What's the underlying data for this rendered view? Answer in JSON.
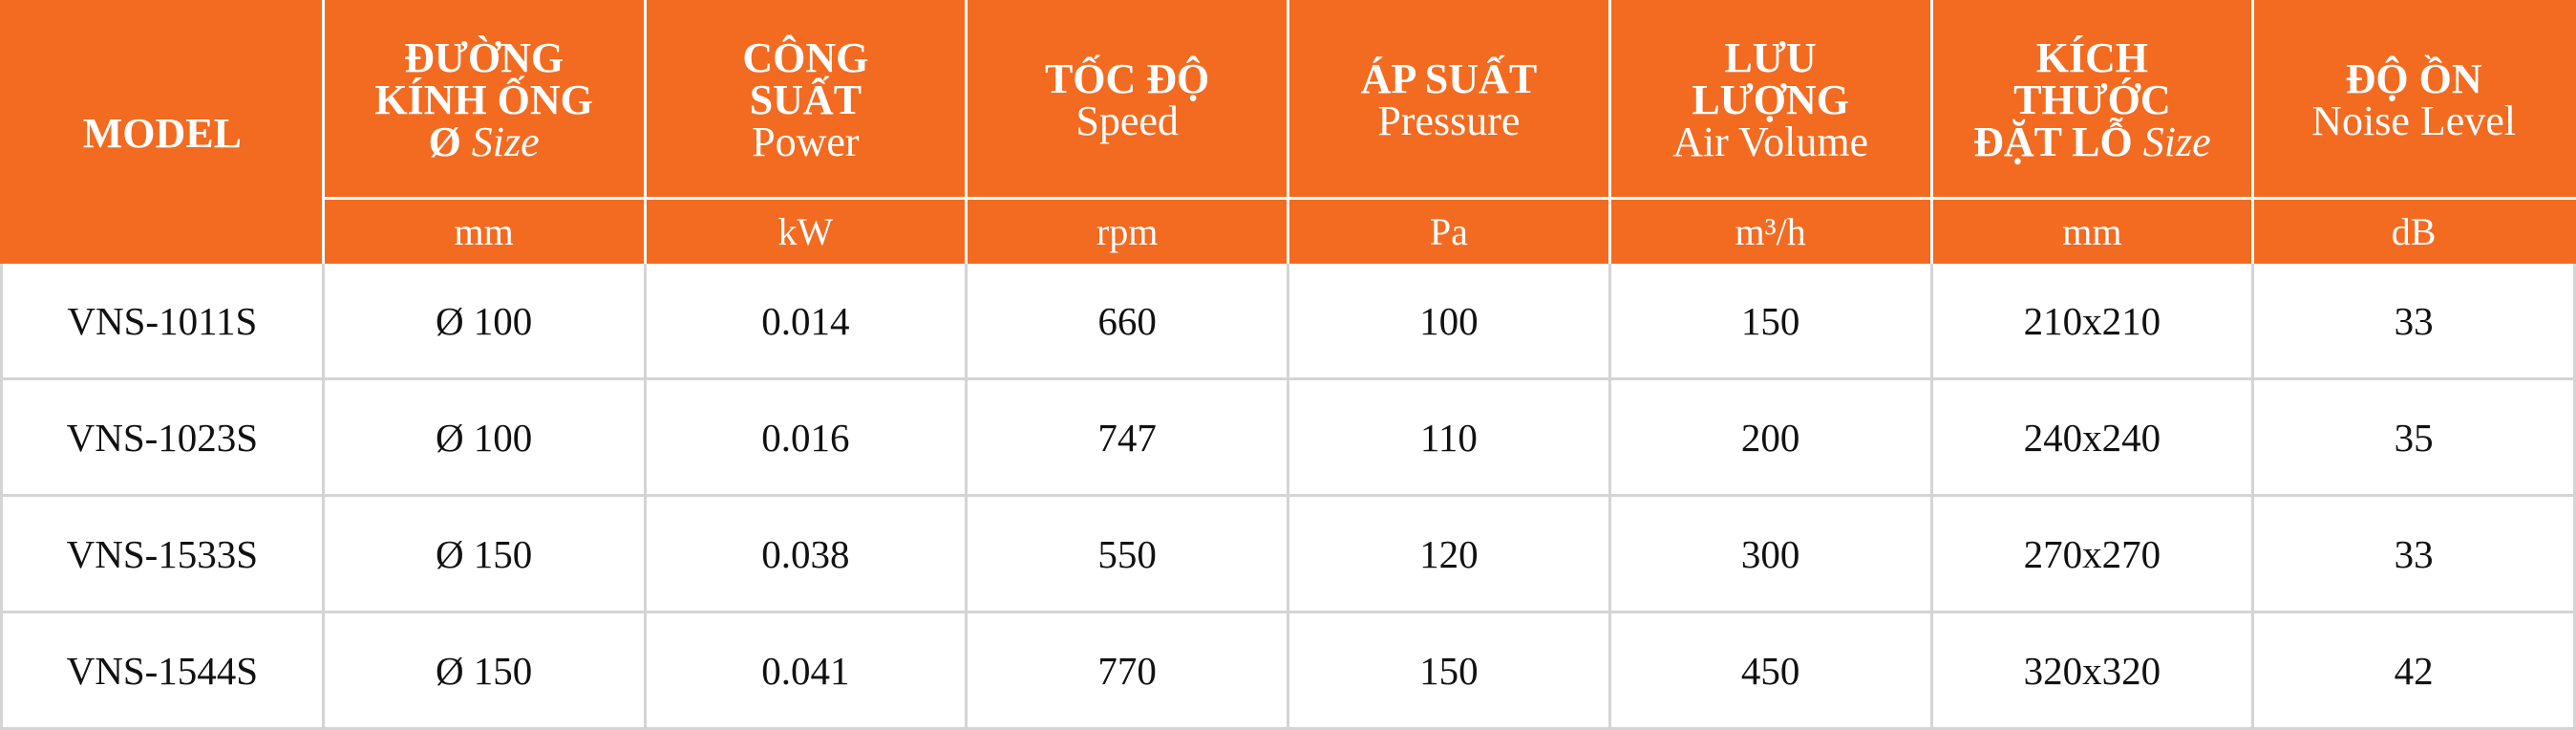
{
  "table": {
    "columns": [
      {
        "title": [
          "MODEL"
        ]
      },
      {
        "title": [
          "ĐƯỜNG",
          "KÍNH ỐNG",
          "Ø"
        ],
        "subtitle": "Size",
        "subtitle_style": "italic-inline",
        "unit": "mm"
      },
      {
        "title": [
          "CÔNG",
          "SUẤT"
        ],
        "subtitle": "Power",
        "unit": "kW"
      },
      {
        "title": [
          "TỐC ĐỘ"
        ],
        "subtitle": "Speed",
        "unit": "rpm"
      },
      {
        "title": [
          "ÁP SUẤT"
        ],
        "subtitle": "Pressure",
        "unit": "Pa"
      },
      {
        "title": [
          "LƯU",
          "LƯỢNG"
        ],
        "subtitle": "Air Volume",
        "unit": "m³/h"
      },
      {
        "title": [
          "KÍCH",
          "THƯỚC",
          "ĐẶT LỖ"
        ],
        "subtitle": "Size",
        "subtitle_style": "italic-inline",
        "unit": "mm"
      },
      {
        "title": [
          "ĐỘ ỒN"
        ],
        "subtitle": "Noise Level",
        "unit": "dB"
      }
    ],
    "rows": [
      [
        "VNS-1011S",
        "Ø 100",
        "0.014",
        "660",
        "100",
        "150",
        "210x210",
        "33"
      ],
      [
        "VNS-1023S",
        "Ø 100",
        "0.016",
        "747",
        "110",
        "200",
        "240x240",
        "35"
      ],
      [
        "VNS-1533S",
        "Ø 150",
        "0.038",
        "550",
        "120",
        "300",
        "270x270",
        "33"
      ],
      [
        "VNS-1544S",
        "Ø 150",
        "0.041",
        "770",
        "150",
        "450",
        "320x320",
        "42"
      ]
    ]
  }
}
